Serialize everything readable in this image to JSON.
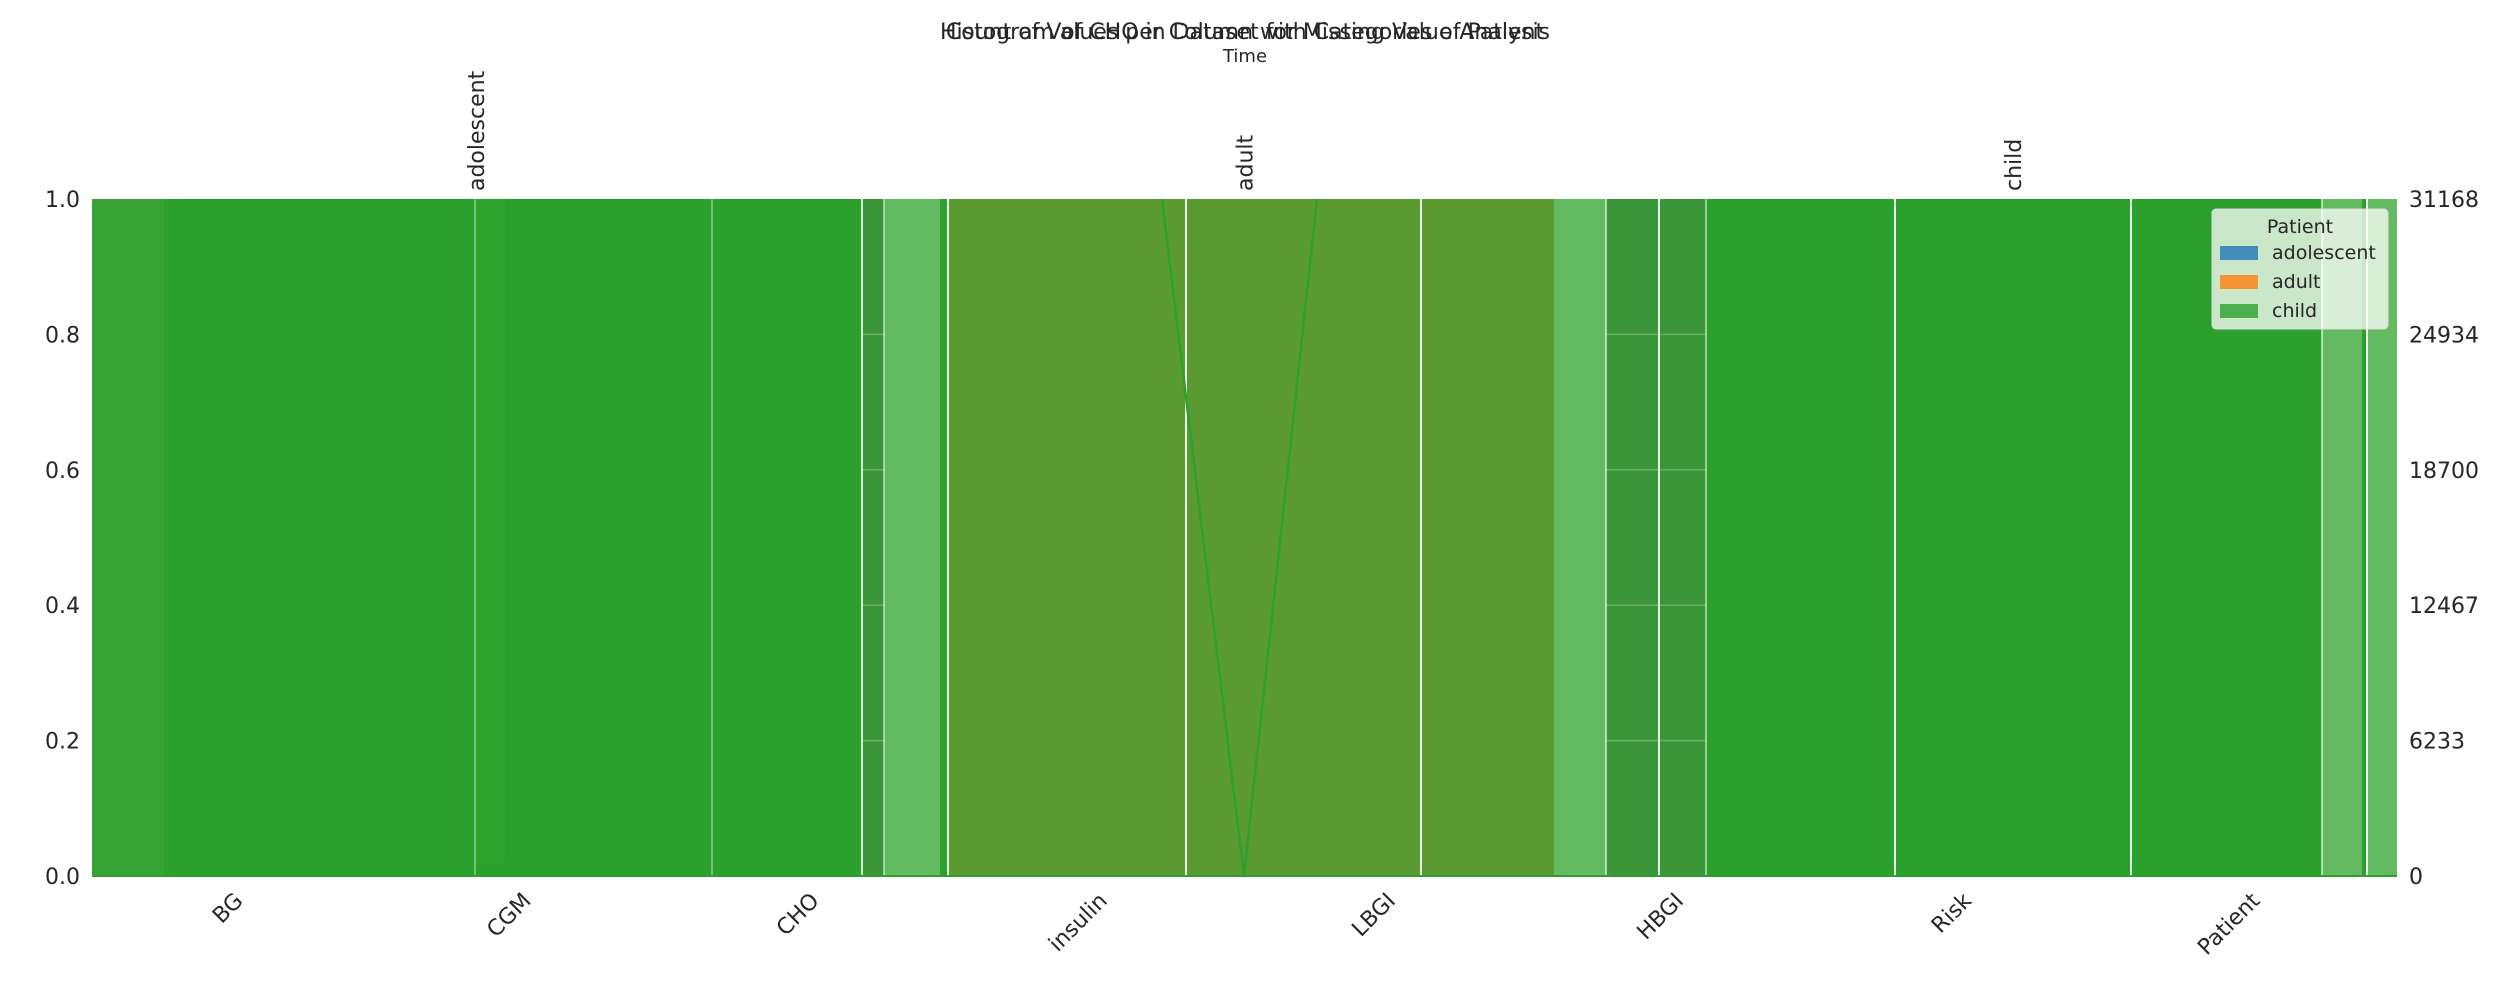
{
  "chart_data": [
    {
      "type": "bar",
      "title": "Count of Values per Column with Categories of Patient",
      "categories": [
        "BG",
        "CGM",
        "CHO",
        "insulin",
        "LBGI",
        "HBGI",
        "Risk",
        "Patient"
      ],
      "ylim": [
        0,
        1.0
      ],
      "yticks": [
        "0.0",
        "0.2",
        "0.4",
        "0.6",
        "0.8",
        "1.0"
      ],
      "legend": {
        "title": "Patient",
        "position": "top-right",
        "entries": [
          {
            "label": "adolescent",
            "color": "#1f77b4"
          },
          {
            "label": "adult",
            "color": "#ff7f0e"
          },
          {
            "label": "child",
            "color": "#2ca02c"
          }
        ]
      }
    },
    {
      "type": "bar",
      "title": "Histogram of CHO in Dataset for Missing Value Analysis",
      "xlabel": "Time",
      "categories": [
        "adolescent",
        "adult",
        "child"
      ],
      "ylim": [
        0,
        31168
      ],
      "yticks": [
        "0",
        "6233",
        "12467",
        "18700",
        "24934",
        "31168"
      ],
      "series_color": "#2ca02c"
    }
  ],
  "colors": {
    "adolescent": "#1f77b4",
    "adult": "#ff7f0e",
    "child": "#2ca02c",
    "overlay_olive": "#5a9a30"
  }
}
